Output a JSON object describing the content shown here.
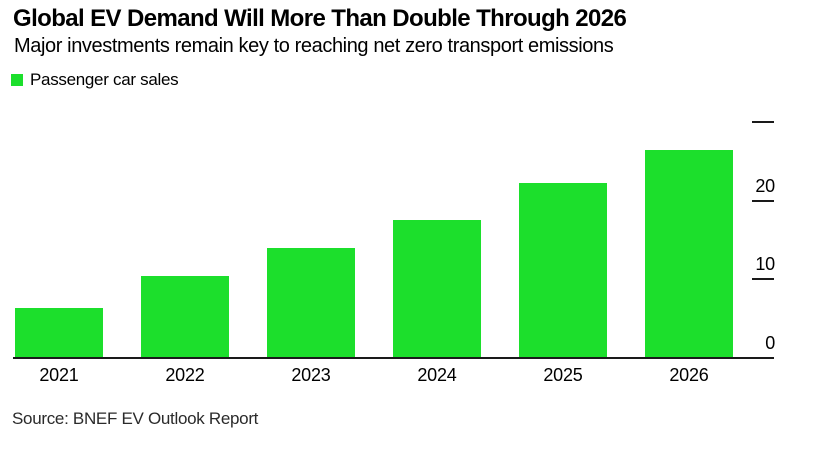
{
  "chart_data": {
    "type": "bar",
    "title": "Global EV Demand Will More Than Double Through 2026",
    "subtitle": "Major investments remain key to reaching net zero transport emissions",
    "source": "Source: BNEF EV Outlook Report",
    "categories": [
      "2021",
      "2022",
      "2023",
      "2024",
      "2025",
      "2026"
    ],
    "series": [
      {
        "name": "Passenger car sales",
        "values": [
          6.4,
          10.4,
          14,
          17.5,
          22.3,
          26.5
        ]
      }
    ],
    "ylim": [
      0,
      30
    ],
    "yticks": [
      {
        "value": 0,
        "label": "0"
      },
      {
        "value": 10,
        "label": "10"
      },
      {
        "value": 20,
        "label": "20"
      },
      {
        "value": 30,
        "label": ""
      }
    ],
    "bar_color": "#1cdf2c",
    "axis_side": "right",
    "grid": false,
    "legend_position": "top-left",
    "xlabel": "",
    "ylabel": ""
  }
}
